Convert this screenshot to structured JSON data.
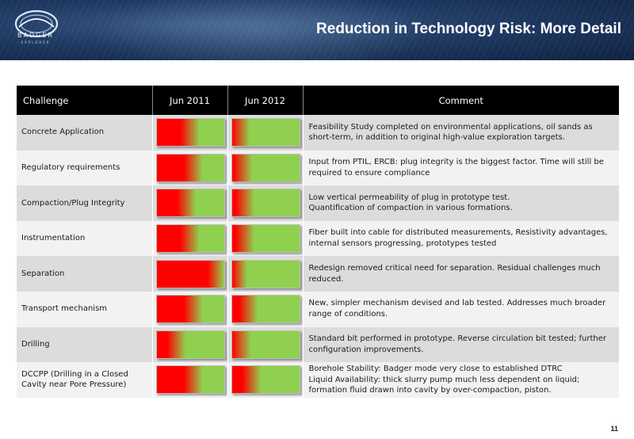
{
  "slide": {
    "title": "Reduction in Technology Risk: More Detail",
    "page_number": "11",
    "logo_text": "BADGER",
    "logo_subtext": "EXPLORER"
  },
  "colors": {
    "risk_red": "#ff0000",
    "risk_green": "#8fd14f",
    "header_bg": "#000000"
  },
  "table": {
    "headers": {
      "challenge": "Challenge",
      "jun2011": "Jun 2011",
      "jun2012": "Jun 2012",
      "comment": "Comment"
    },
    "rows": [
      {
        "challenge": "Concrete Application",
        "jun2011": 0.45,
        "jun2012": 0.08,
        "comment": "Feasibility Study completed on environmental applications, oil sands as short-term, in addition to original high-value exploration targets."
      },
      {
        "challenge": "Regulatory requirements",
        "jun2011": 0.5,
        "jun2012": 0.12,
        "comment": "Input from PTIL, ERCB: plug integrity is the biggest factor. Time will still be required to ensure compliance"
      },
      {
        "challenge": "Compaction/Plug Integrity",
        "jun2011": 0.4,
        "jun2012": 0.15,
        "comment": "Low vertical permeability of plug in prototype test.\nQuantification of compaction in various formations."
      },
      {
        "challenge": "Instrumentation",
        "jun2011": 0.45,
        "jun2012": 0.15,
        "comment": "Fiber built into cable for distributed measurements, Resistivity advantages, internal sensors progressing, prototypes tested"
      },
      {
        "challenge": "Separation",
        "jun2011": 0.85,
        "jun2012": 0.04,
        "comment": "Redesign removed critical need for separation. Residual challenges much reduced."
      },
      {
        "challenge": "Transport mechanism",
        "jun2011": 0.5,
        "jun2012": 0.2,
        "comment": "New, simpler mechanism devised and lab tested. Addresses much broader range of conditions."
      },
      {
        "challenge": "Drilling",
        "jun2011": 0.25,
        "jun2012": 0.1,
        "comment": "Standard bit performed in prototype. Reverse circulation bit tested; further configuration improvements."
      },
      {
        "challenge": "DCCPP (Drilling in a Closed Cavity near Pore Pressure)",
        "jun2011": 0.5,
        "jun2012": 0.25,
        "comment": "Borehole Stability: Badger mode very close to established DTRC\nLiquid Availability:  thick slurry pump much less dependent on liquid; formation fluid drawn into cavity by over-compaction, piston."
      }
    ]
  }
}
